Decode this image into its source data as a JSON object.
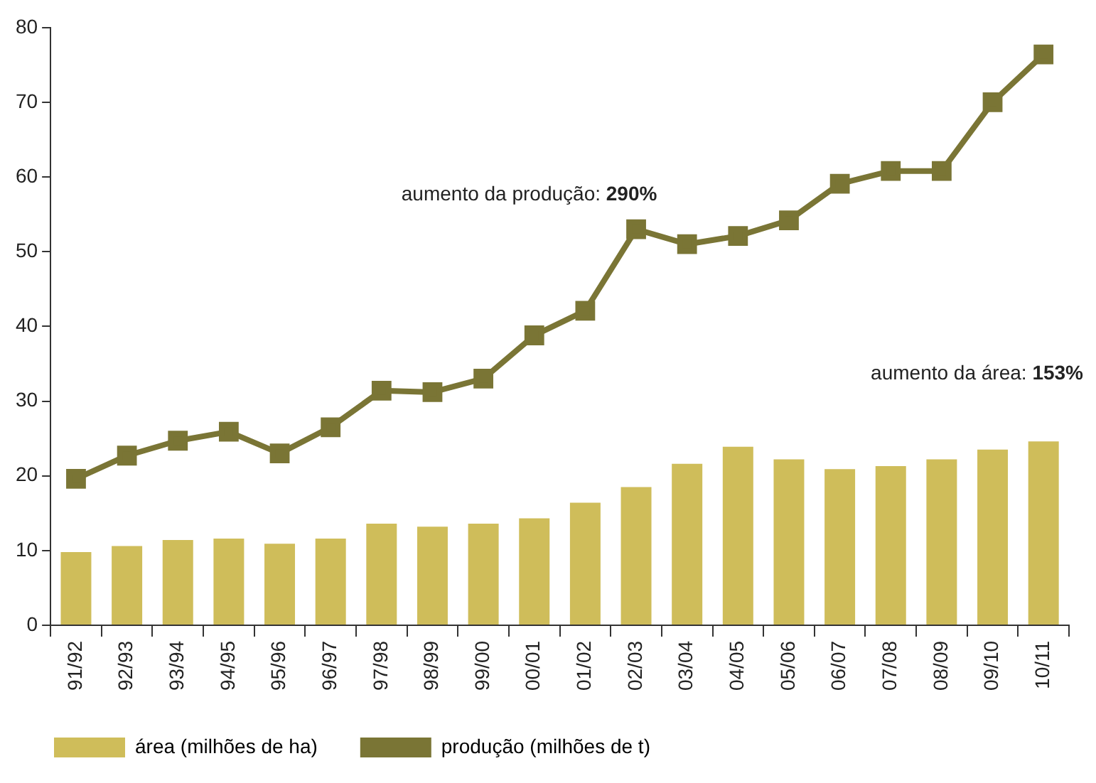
{
  "chart_data": {
    "type": "bar",
    "categories": [
      "91/92",
      "92/93",
      "93/94",
      "94/95",
      "95/96",
      "96/97",
      "97/98",
      "98/99",
      "99/00",
      "00/01",
      "01/02",
      "02/03",
      "03/04",
      "04/05",
      "05/06",
      "06/07",
      "07/08",
      "08/09",
      "09/10",
      "10/11"
    ],
    "series": [
      {
        "name": "área (milhões de ha)",
        "color": "#cfbd5a",
        "values": [
          9.8,
          10.6,
          11.4,
          11.6,
          10.9,
          11.6,
          13.6,
          13.2,
          13.6,
          14.3,
          16.4,
          18.5,
          21.6,
          23.9,
          22.2,
          20.9,
          21.3,
          22.2,
          23.5,
          24.6
        ]
      },
      {
        "name": "produção (milhões de t)",
        "type": "line",
        "color": "#7a7535",
        "values": [
          19.6,
          22.7,
          24.7,
          25.9,
          23.0,
          26.5,
          31.4,
          31.2,
          33.0,
          38.8,
          42.1,
          53.0,
          51.0,
          52.1,
          54.2,
          59.1,
          60.8,
          60.8,
          70.0,
          76.4
        ]
      }
    ],
    "ylim": [
      0,
      80
    ],
    "yticks": [
      0,
      10,
      20,
      30,
      40,
      50,
      60,
      70,
      80
    ],
    "legend": "bottom",
    "marker": "square",
    "line_style": "solid",
    "annotations": [
      "aumento da produção: 290%",
      "aumento da área: 153%"
    ]
  }
}
